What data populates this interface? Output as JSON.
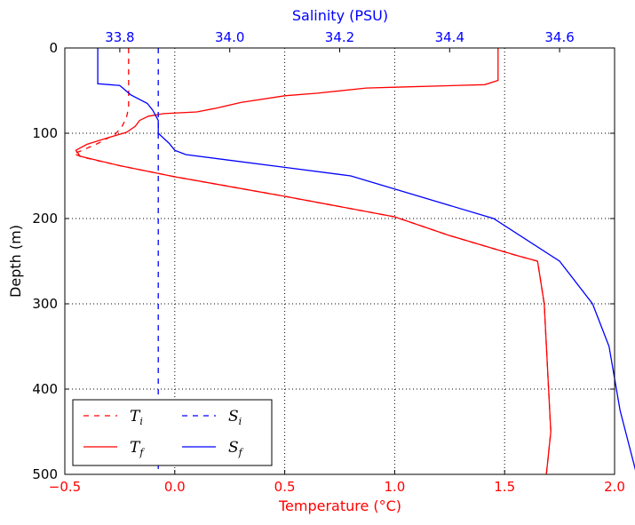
{
  "chart_data": {
    "type": "line",
    "title": "",
    "ylabel": "Depth (m)",
    "xlabel_bottom": "Temperature (°C)",
    "xlabel_top": "Salinity (PSU)",
    "ylim": [
      0,
      500
    ],
    "y_inverted": true,
    "y_ticks": [
      0,
      100,
      200,
      300,
      400,
      500
    ],
    "xlim_bottom": [
      -0.5,
      2.0
    ],
    "x_ticks_bottom": [
      -0.5,
      0.0,
      0.5,
      1.0,
      1.5,
      2.0
    ],
    "x_tick_labels_bottom": [
      "−0.5",
      "0.0",
      "0.5",
      "1.0",
      "1.5",
      "2.0"
    ],
    "xlim_top": [
      33.7,
      34.7
    ],
    "x_ticks_top": [
      33.8,
      34.0,
      34.2,
      34.4,
      34.6
    ],
    "x_tick_labels_top": [
      "33.8",
      "34.0",
      "34.2",
      "34.4",
      "34.6"
    ],
    "grid": true,
    "legend_position": "bottom-left",
    "colors": {
      "temperature": "#ff0000",
      "salinity": "#0000ff",
      "axes": "#000000"
    },
    "series": [
      {
        "name_base": "T",
        "name_sub": "i",
        "axis": "bottom",
        "color": "#ff0000",
        "dash": "dashed",
        "points": [
          [
            -0.21,
            0
          ],
          [
            -0.21,
            70
          ],
          [
            -0.22,
            82
          ],
          [
            -0.24,
            92
          ],
          [
            -0.27,
            101
          ],
          [
            -0.35,
            112
          ],
          [
            -0.42,
            120
          ],
          [
            -0.46,
            124
          ],
          [
            -0.42,
            128
          ],
          [
            -0.25,
            138
          ],
          [
            0.0,
            151
          ],
          [
            0.5,
            174
          ],
          [
            1.0,
            198
          ],
          [
            1.25,
            220
          ],
          [
            1.55,
            243
          ],
          [
            1.65,
            250
          ],
          [
            1.68,
            300
          ],
          [
            1.7,
            400
          ],
          [
            1.71,
            450
          ],
          [
            1.69,
            500
          ]
        ]
      },
      {
        "name_base": "T",
        "name_sub": "f",
        "axis": "bottom",
        "color": "#ff0000",
        "dash": "solid",
        "points": [
          [
            1.47,
            0
          ],
          [
            1.47,
            38
          ],
          [
            1.41,
            43
          ],
          [
            1.0,
            46
          ],
          [
            0.87,
            47
          ],
          [
            0.65,
            53
          ],
          [
            0.5,
            56
          ],
          [
            0.3,
            64
          ],
          [
            0.18,
            71
          ],
          [
            0.1,
            75
          ],
          [
            -0.05,
            77
          ],
          [
            -0.12,
            80
          ],
          [
            -0.16,
            85
          ],
          [
            -0.18,
            92
          ],
          [
            -0.22,
            99
          ],
          [
            -0.3,
            105
          ],
          [
            -0.4,
            113
          ],
          [
            -0.45,
            120
          ],
          [
            -0.43,
            127
          ],
          [
            -0.25,
            138
          ],
          [
            0.0,
            151
          ],
          [
            0.5,
            174
          ],
          [
            1.0,
            198
          ],
          [
            1.25,
            220
          ],
          [
            1.55,
            243
          ],
          [
            1.65,
            250
          ],
          [
            1.68,
            300
          ],
          [
            1.7,
            400
          ],
          [
            1.71,
            450
          ],
          [
            1.69,
            500
          ]
        ]
      },
      {
        "name_base": "S",
        "name_sub": "i",
        "axis": "top",
        "color": "#0000ff",
        "dash": "dashed",
        "points": [
          [
            33.87,
            0
          ],
          [
            33.87,
            500
          ]
        ]
      },
      {
        "name_base": "S",
        "name_sub": "f",
        "axis": "top",
        "color": "#0000ff",
        "dash": "solid",
        "points": [
          [
            33.76,
            0
          ],
          [
            33.76,
            42
          ],
          [
            33.8,
            44
          ],
          [
            33.82,
            55
          ],
          [
            33.85,
            65
          ],
          [
            33.86,
            73
          ],
          [
            33.87,
            85
          ],
          [
            33.87,
            100
          ],
          [
            33.89,
            112
          ],
          [
            33.9,
            120
          ],
          [
            33.92,
            125
          ],
          [
            34.1,
            140
          ],
          [
            34.22,
            150
          ],
          [
            34.35,
            175
          ],
          [
            34.48,
            200
          ],
          [
            34.6,
            250
          ],
          [
            34.66,
            300
          ],
          [
            34.69,
            350
          ],
          [
            34.71,
            425
          ],
          [
            34.74,
            500
          ]
        ]
      }
    ]
  }
}
